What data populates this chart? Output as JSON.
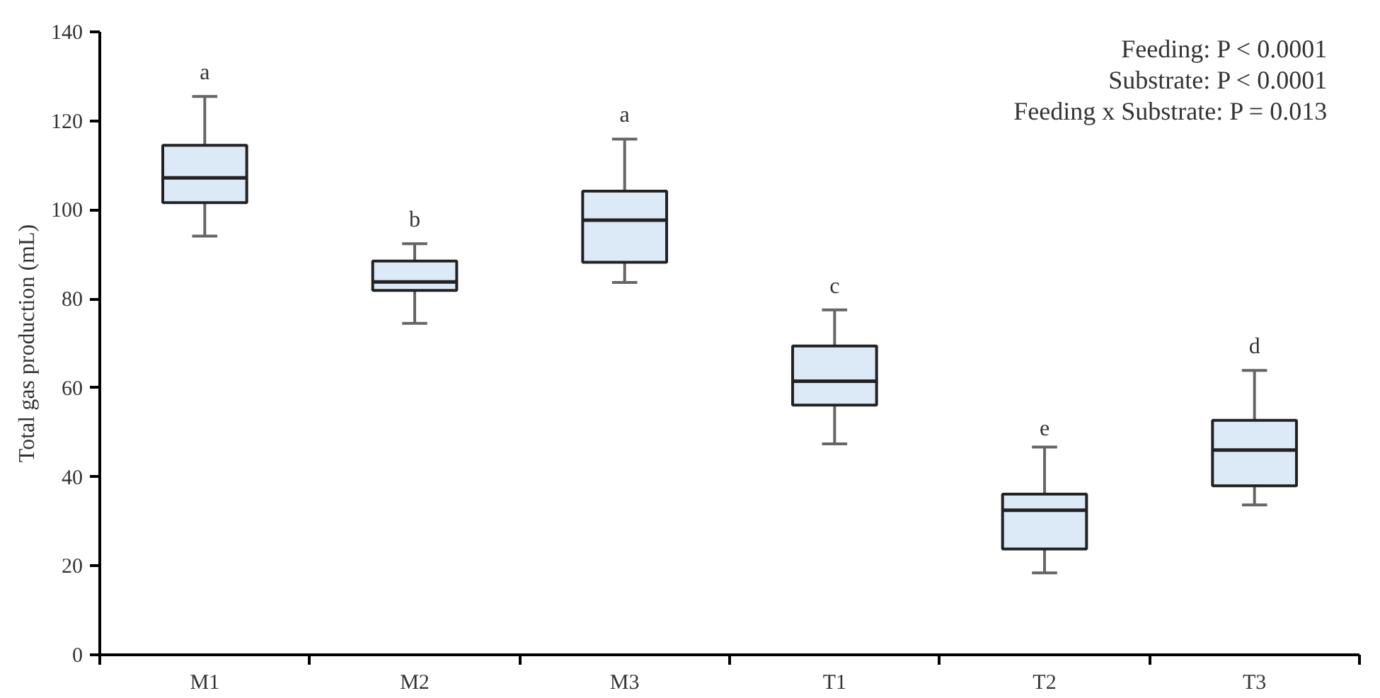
{
  "chart_data": {
    "type": "box",
    "ylabel": "Total gas production (mL)",
    "categories": [
      "M1",
      "M2",
      "M3",
      "T1",
      "T2",
      "T3"
    ],
    "color": "#dce9f6",
    "boxes": [
      {
        "low": 94.1,
        "q1": 101.6,
        "median": 107.2,
        "q3": 114.5,
        "high": 125.5
      },
      {
        "low": 74.5,
        "q1": 81.9,
        "median": 83.8,
        "q3": 88.5,
        "high": 92.4
      },
      {
        "low": 83.7,
        "q1": 88.2,
        "median": 97.7,
        "q3": 104.2,
        "high": 115.9
      },
      {
        "low": 47.4,
        "q1": 56.1,
        "median": 61.5,
        "q3": 69.4,
        "high": 77.5
      },
      {
        "low": 18.4,
        "q1": 23.8,
        "median": 32.5,
        "q3": 36.1,
        "high": 46.7
      },
      {
        "low": 33.7,
        "q1": 38.0,
        "median": 46.0,
        "q3": 52.7,
        "high": 63.9
      }
    ],
    "ylim": [
      0,
      140
    ],
    "yticks": [
      0,
      20,
      40,
      60,
      80,
      100,
      120,
      140
    ],
    "grid": false,
    "annotations": [
      "a",
      "b",
      "a",
      "c",
      "e",
      "d",
      "Feeding: P < 0.0001",
      "Substrate: P < 0.0001",
      "Feeding x Substrate: P = 0.013"
    ]
  }
}
